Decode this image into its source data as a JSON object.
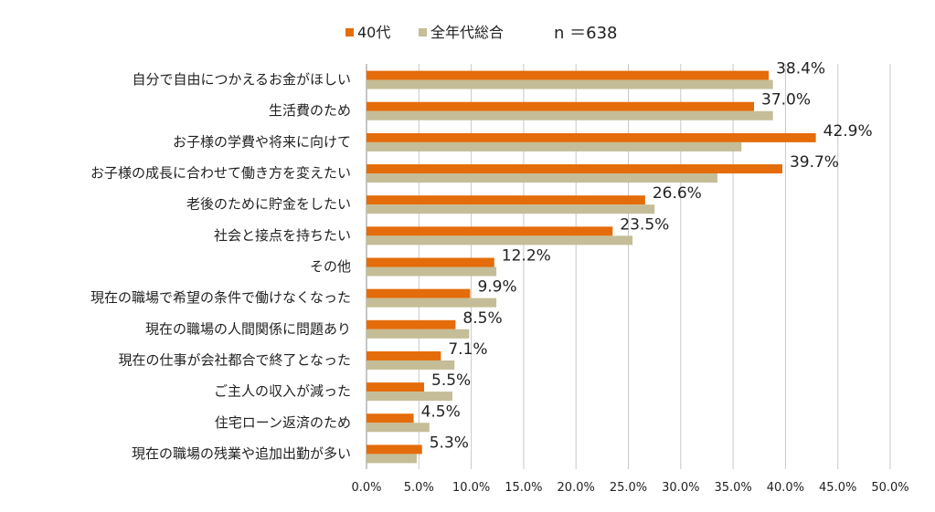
{
  "chart_data": {
    "type": "bar",
    "orientation": "horizontal",
    "n_label": "n ＝638",
    "categories": [
      "自分で自由につかえるお金がほしい",
      "生活費のため",
      "お子様の学費や将来に向けて",
      "お子様の成長に合わせて働き方を変えたい",
      "老後のために貯金をしたい",
      "社会と接点を持ちたい",
      "その他",
      "現在の職場で希望の条件で働けなくなった",
      "現在の職場の人間関係に問題あり",
      "現在の仕事が会社都合で終了となった",
      "ご主人の収入が減った",
      "住宅ローン返済のため",
      "現在の職場の残業や追加出勤が多い"
    ],
    "series": [
      {
        "name": "40代",
        "color": "#E46C0A",
        "values": [
          38.4,
          37.0,
          42.9,
          39.7,
          26.6,
          23.5,
          12.2,
          9.9,
          8.5,
          7.1,
          5.5,
          4.5,
          5.3
        ],
        "labels": [
          "38.4%",
          "37.0%",
          "42.9%",
          "39.7%",
          "26.6%",
          "23.5%",
          "12.2%",
          "9.9%",
          "8.5%",
          "7.1%",
          "5.5%",
          "4.5%",
          "5.3%"
        ]
      },
      {
        "name": "全年代総合",
        "color": "#C4BD97",
        "values": [
          38.8,
          38.8,
          35.8,
          33.5,
          27.5,
          25.4,
          12.4,
          12.4,
          9.8,
          8.4,
          8.2,
          6.0,
          4.8
        ]
      }
    ],
    "x_ticks": [
      "0.0%",
      "5.0%",
      "10.0%",
      "15.0%",
      "20.0%",
      "25.0%",
      "30.0%",
      "35.0%",
      "40.0%",
      "45.0%",
      "50.0%"
    ],
    "xlim": [
      0,
      50
    ],
    "grid": true,
    "legend_position": "top"
  }
}
